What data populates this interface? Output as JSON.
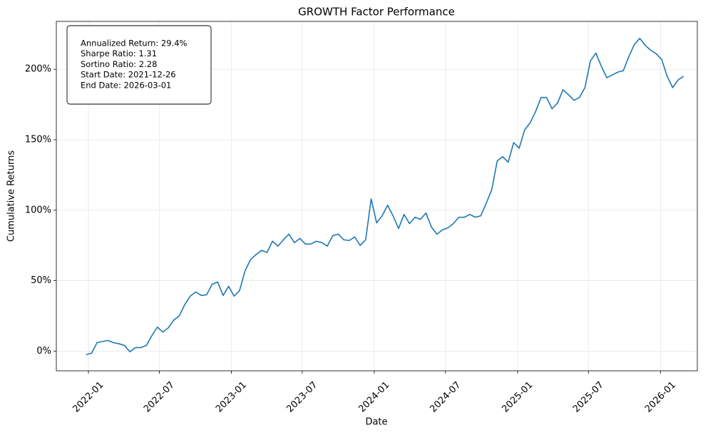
{
  "chart_data": {
    "type": "line",
    "title": "GROWTH Factor Performance",
    "x_label": "Date",
    "y_label": "Cumulative Returns",
    "annotation": [
      "Annualized Return: 29.4%",
      "Sharpe Ratio: 1.31",
      "Sortino Ratio: 2.28",
      "Start Date: 2021-12-26",
      "End Date: 2026-03-01"
    ],
    "color": "#1f77b4",
    "grid": true,
    "x": [
      "2021-12-26",
      "2022-01-09",
      "2022-01-23",
      "2022-02-06",
      "2022-02-20",
      "2022-03-06",
      "2022-03-20",
      "2022-04-03",
      "2022-04-17",
      "2022-05-01",
      "2022-05-15",
      "2022-05-29",
      "2022-06-12",
      "2022-06-26",
      "2022-07-10",
      "2022-07-24",
      "2022-08-07",
      "2022-08-21",
      "2022-09-04",
      "2022-09-18",
      "2022-10-02",
      "2022-10-16",
      "2022-10-30",
      "2022-11-13",
      "2022-11-27",
      "2022-12-11",
      "2022-12-25",
      "2023-01-08",
      "2023-01-22",
      "2023-02-05",
      "2023-02-19",
      "2023-03-05",
      "2023-03-19",
      "2023-04-02",
      "2023-04-16",
      "2023-04-30",
      "2023-05-14",
      "2023-05-28",
      "2023-06-11",
      "2023-06-25",
      "2023-07-09",
      "2023-07-23",
      "2023-08-06",
      "2023-08-20",
      "2023-09-03",
      "2023-09-17",
      "2023-10-01",
      "2023-10-15",
      "2023-10-29",
      "2023-11-12",
      "2023-11-26",
      "2023-12-10",
      "2023-12-24",
      "2024-01-07",
      "2024-01-21",
      "2024-02-04",
      "2024-02-18",
      "2024-03-03",
      "2024-03-17",
      "2024-03-31",
      "2024-04-14",
      "2024-04-28",
      "2024-05-12",
      "2024-05-26",
      "2024-06-09",
      "2024-06-23",
      "2024-07-07",
      "2024-07-21",
      "2024-08-04",
      "2024-08-18",
      "2024-09-01",
      "2024-09-15",
      "2024-09-29",
      "2024-10-13",
      "2024-10-27",
      "2024-11-10",
      "2024-11-24",
      "2024-12-08",
      "2024-12-22",
      "2025-01-05",
      "2025-01-19",
      "2025-02-02",
      "2025-02-16",
      "2025-03-02",
      "2025-03-16",
      "2025-03-30",
      "2025-04-13",
      "2025-04-27",
      "2025-05-11",
      "2025-05-25",
      "2025-06-08",
      "2025-06-22",
      "2025-07-06",
      "2025-07-20",
      "2025-08-03",
      "2025-08-17",
      "2025-08-31",
      "2025-09-14",
      "2025-09-28",
      "2025-10-12",
      "2025-10-26",
      "2025-11-09",
      "2025-11-23",
      "2025-12-07",
      "2025-12-21",
      "2026-01-04",
      "2026-01-18",
      "2026-02-01",
      "2026-02-15",
      "2026-03-01"
    ],
    "values": [
      -2.5,
      -1.5,
      6,
      6.8,
      7.5,
      6,
      5.2,
      4,
      -0.5,
      2.5,
      2.5,
      4,
      11,
      17,
      13.5,
      16.5,
      22,
      25,
      33,
      39,
      42,
      39.5,
      40,
      47.5,
      49,
      39.5,
      46,
      39,
      43,
      57,
      65,
      68.5,
      71.5,
      70,
      78,
      74.5,
      79,
      83,
      77,
      80,
      76,
      76,
      78,
      77,
      74.5,
      82,
      83,
      79,
      78.5,
      81,
      75,
      79,
      108,
      91,
      96,
      103.5,
      96,
      87,
      97,
      90.5,
      95,
      93.5,
      98,
      88,
      83,
      86,
      87.5,
      90.5,
      95,
      95,
      97,
      95,
      96,
      105,
      114.5,
      135,
      138,
      134,
      148,
      144,
      157,
      162,
      170,
      180,
      180,
      172,
      176,
      185.5,
      182,
      178,
      180,
      187,
      206,
      211.5,
      202,
      194,
      196,
      198,
      199,
      209,
      217.5,
      222,
      217,
      213.5,
      211,
      207,
      195,
      187,
      192.5,
      195
    ],
    "xlim": [
      "2021-10-11",
      "2026-04-05"
    ],
    "xticks": [
      {
        "value": "2022-01-01",
        "label": "2022-01"
      },
      {
        "value": "2022-07-01",
        "label": "2022-07"
      },
      {
        "value": "2023-01-01",
        "label": "2023-01"
      },
      {
        "value": "2023-07-01",
        "label": "2023-07"
      },
      {
        "value": "2024-01-01",
        "label": "2024-01"
      },
      {
        "value": "2024-07-01",
        "label": "2024-07"
      },
      {
        "value": "2025-01-01",
        "label": "2025-01"
      },
      {
        "value": "2025-07-01",
        "label": "2025-07"
      },
      {
        "value": "2026-01-01",
        "label": "2026-01"
      }
    ],
    "ylim": [
      -14,
      234
    ],
    "yticks": [
      {
        "value": 0,
        "label": "0%"
      },
      {
        "value": 50,
        "label": "50%"
      },
      {
        "value": 100,
        "label": "100%"
      },
      {
        "value": 150,
        "label": "150%"
      },
      {
        "value": 200,
        "label": "200%"
      }
    ]
  }
}
